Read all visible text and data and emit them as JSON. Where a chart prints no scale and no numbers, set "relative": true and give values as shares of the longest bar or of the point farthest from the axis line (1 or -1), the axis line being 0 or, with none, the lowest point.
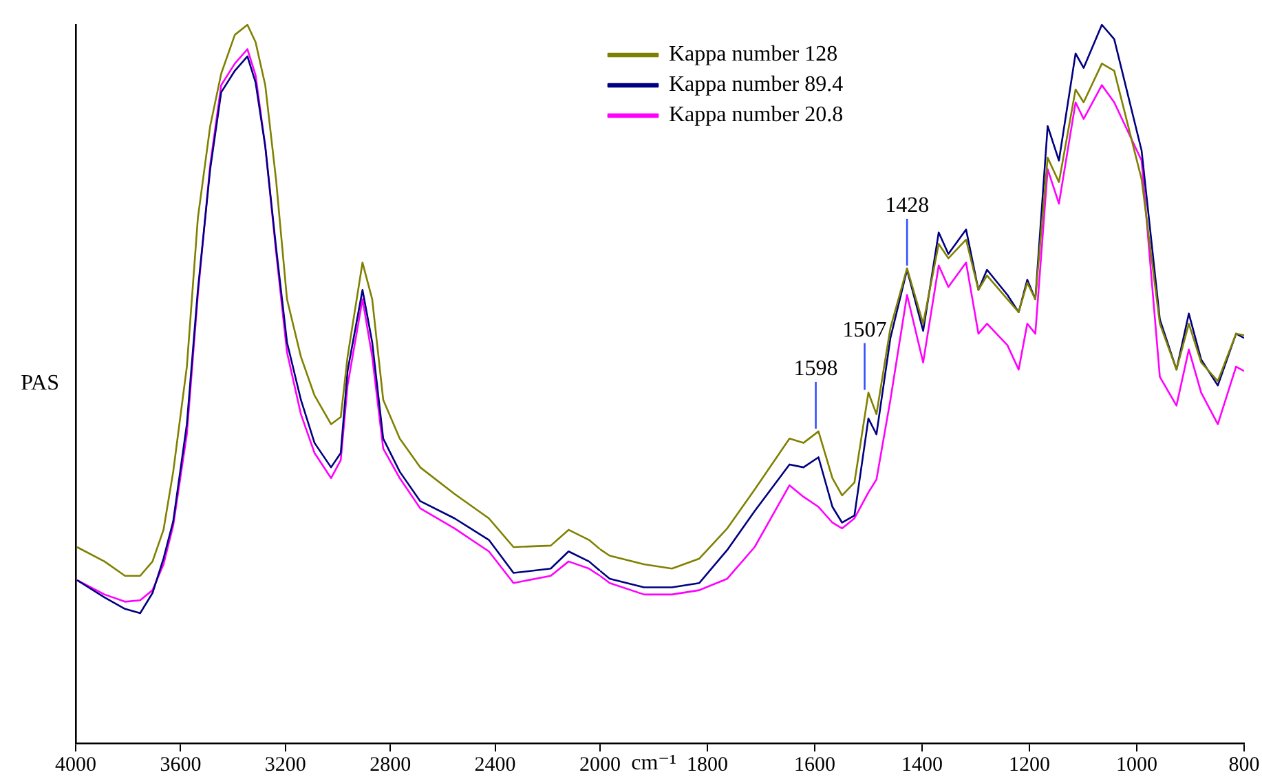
{
  "chart_data": [
    {
      "type": "line",
      "ylabel": "PAS",
      "relative": true,
      "marker": "none",
      "line_style": "solid",
      "xlim": [
        4000,
        2000
      ],
      "xticks": [
        4000,
        3600,
        3200,
        2800,
        2400,
        2000
      ],
      "x": [
        3995,
        3890,
        3812,
        3754,
        3707,
        3665,
        3628,
        3576,
        3534,
        3487,
        3445,
        3393,
        3345,
        3314,
        3277,
        3236,
        3194,
        3141,
        3089,
        3026,
        2989,
        2963,
        2906,
        2869,
        2827,
        2764,
        2686,
        2555,
        2424,
        2330,
        2188,
        2120,
        2042,
        2000
      ],
      "series": [
        {
          "color": "#808000",
          "values": [
            0.273,
            0.253,
            0.233,
            0.233,
            0.253,
            0.297,
            0.378,
            0.524,
            0.731,
            0.859,
            0.932,
            0.986,
            1,
            0.976,
            0.916,
            0.785,
            0.618,
            0.538,
            0.484,
            0.444,
            0.454,
            0.538,
            0.669,
            0.618,
            0.478,
            0.424,
            0.384,
            0.347,
            0.313,
            0.273,
            0.275,
            0.297,
            0.283,
            0.27
          ]
        },
        {
          "color": "#000080",
          "values": [
            0.227,
            0.203,
            0.187,
            0.181,
            0.209,
            0.257,
            0.309,
            0.444,
            0.631,
            0.799,
            0.906,
            0.936,
            0.956,
            0.92,
            0.831,
            0.691,
            0.558,
            0.478,
            0.418,
            0.384,
            0.404,
            0.518,
            0.631,
            0.558,
            0.424,
            0.378,
            0.337,
            0.313,
            0.283,
            0.237,
            0.243,
            0.267,
            0.253,
            0.24
          ]
        },
        {
          "color": "#ff00ff",
          "values": [
            0.227,
            0.207,
            0.197,
            0.199,
            0.213,
            0.249,
            0.303,
            0.43,
            0.624,
            0.805,
            0.916,
            0.946,
            0.966,
            0.93,
            0.831,
            0.685,
            0.544,
            0.458,
            0.404,
            0.369,
            0.394,
            0.498,
            0.618,
            0.538,
            0.41,
            0.369,
            0.327,
            0.299,
            0.267,
            0.223,
            0.233,
            0.253,
            0.243,
            0.233
          ]
        }
      ]
    },
    {
      "type": "line",
      "xlabel": "cm⁻¹",
      "relative": true,
      "legend": "top",
      "marker": "none",
      "line_style": "solid",
      "tick_labels": "x",
      "xlim": [
        2000,
        800
      ],
      "xticks": [
        1800,
        1600,
        1400,
        1200,
        1000,
        800
      ],
      "x": [
        2000,
        1982,
        1918,
        1866,
        1815,
        1763,
        1712,
        1647,
        1621,
        1593,
        1567,
        1549,
        1526,
        1500,
        1485,
        1459,
        1428,
        1398,
        1369,
        1351,
        1318,
        1295,
        1279,
        1241,
        1220,
        1204,
        1189,
        1166,
        1145,
        1114,
        1099,
        1065,
        1042,
        991,
        957,
        926,
        903,
        880,
        849,
        815,
        800
      ],
      "series": [
        {
          "name": "Kappa number 128",
          "color": "#808000",
          "values": [
            0.27,
            0.261,
            0.249,
            0.243,
            0.257,
            0.299,
            0.353,
            0.424,
            0.418,
            0.434,
            0.369,
            0.345,
            0.363,
            0.488,
            0.458,
            0.578,
            0.661,
            0.584,
            0.695,
            0.675,
            0.701,
            0.631,
            0.651,
            0.618,
            0.6,
            0.641,
            0.618,
            0.815,
            0.781,
            0.91,
            0.892,
            0.946,
            0.936,
            0.785,
            0.584,
            0.52,
            0.584,
            0.53,
            0.504,
            0.57,
            0.568
          ]
        },
        {
          "name": "Kappa number 89.4",
          "color": "#000080",
          "values": [
            0.24,
            0.229,
            0.217,
            0.217,
            0.223,
            0.269,
            0.323,
            0.388,
            0.384,
            0.398,
            0.329,
            0.307,
            0.317,
            0.452,
            0.43,
            0.564,
            0.659,
            0.574,
            0.711,
            0.681,
            0.715,
            0.631,
            0.659,
            0.624,
            0.6,
            0.645,
            0.618,
            0.859,
            0.811,
            0.96,
            0.94,
            1,
            0.98,
            0.825,
            0.59,
            0.52,
            0.598,
            0.534,
            0.498,
            0.57,
            0.564
          ]
        },
        {
          "name": "Kappa number 20.8",
          "color": "#ff00ff",
          "values": [
            0.233,
            0.223,
            0.207,
            0.207,
            0.213,
            0.229,
            0.273,
            0.359,
            0.343,
            0.329,
            0.307,
            0.299,
            0.313,
            0.349,
            0.367,
            0.478,
            0.624,
            0.53,
            0.665,
            0.635,
            0.669,
            0.57,
            0.584,
            0.554,
            0.52,
            0.584,
            0.57,
            0.799,
            0.751,
            0.892,
            0.869,
            0.916,
            0.892,
            0.811,
            0.51,
            0.47,
            0.548,
            0.488,
            0.444,
            0.524,
            0.518
          ]
        }
      ],
      "annotations": [
        {
          "text": "1598",
          "x": 1598,
          "y": 0.434
        },
        {
          "text": "1507",
          "x": 1507,
          "y": 0.488
        },
        {
          "text": "1428",
          "x": 1428,
          "y": 0.661
        }
      ]
    }
  ]
}
